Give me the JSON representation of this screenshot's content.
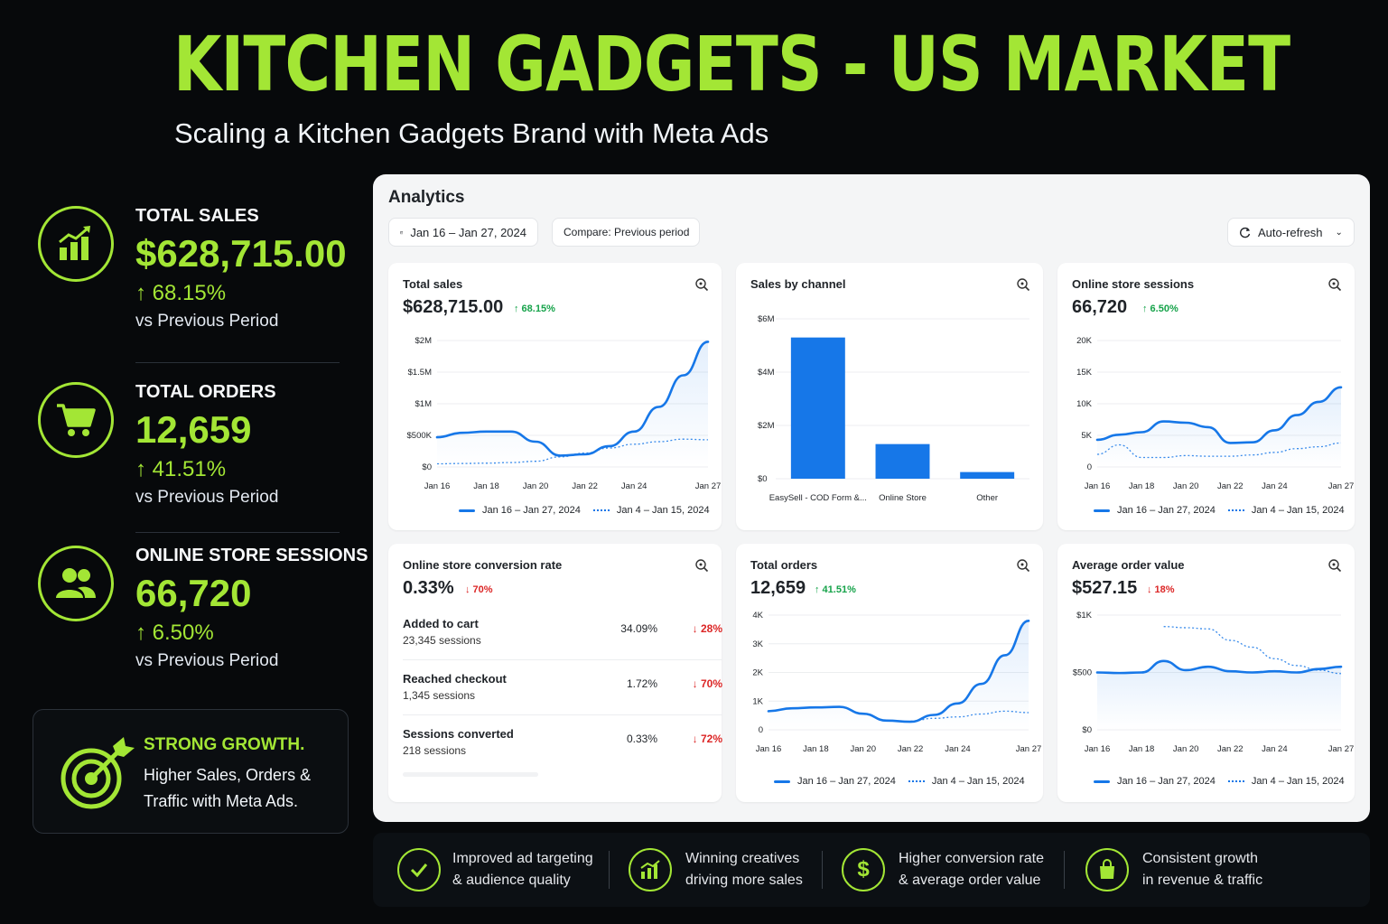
{
  "hero": {
    "title": "KITCHEN GADGETS - US MARKET",
    "subtitle": "Scaling a Kitchen Gadgets Brand with Meta Ads"
  },
  "colors": {
    "accent": "#a3e635",
    "chart_blue": "#1677e8",
    "up": "#16a34a",
    "down": "#dc2626"
  },
  "kpis": [
    {
      "label": "TOTAL SALES",
      "value": "$628,715.00",
      "change": "↑ 68.15%",
      "note": "vs Previous Period",
      "icon": "bar-chart-icon"
    },
    {
      "label": "TOTAL ORDERS",
      "value": "12,659",
      "change": "↑ 41.51%",
      "note": "vs Previous Period",
      "icon": "shopping-cart-icon"
    },
    {
      "label": "ONLINE STORE SESSIONS",
      "value": "66,720",
      "change": "↑ 6.50%",
      "note": "vs Previous Period",
      "icon": "users-icon"
    }
  ],
  "growth": {
    "title": "STRONG GROWTH.",
    "body": "Higher Sales, Orders & Traffic with Meta Ads.",
    "icon": "target-icon"
  },
  "analytics": {
    "title": "Analytics",
    "date_range": "Jan 16 – Jan 27, 2024",
    "compare": "Compare: Previous period",
    "auto_refresh": "Auto-refresh",
    "legend_current": "Jan 16 – Jan 27, 2024",
    "legend_previous": "Jan 4 – Jan 15, 2024",
    "cards": {
      "total_sales": {
        "title": "Total sales",
        "value": "$628,715.00",
        "change": "↑ 68.15%"
      },
      "sales_by_channel": {
        "title": "Sales by channel"
      },
      "sessions": {
        "title": "Online store sessions",
        "value": "66,720",
        "change": "↑ 6.50%"
      },
      "conversion": {
        "title": "Online store conversion rate",
        "value": "0.33%",
        "change": "↓ 70%",
        "rows": [
          {
            "label": "Added to cart",
            "sub": "23,345 sessions",
            "rate": "34.09%",
            "change": "↓ 28%"
          },
          {
            "label": "Reached checkout",
            "sub": "1,345 sessions",
            "rate": "1.72%",
            "change": "↓ 70%"
          },
          {
            "label": "Sessions converted",
            "sub": "218 sessions",
            "rate": "0.33%",
            "change": "↓ 72%"
          }
        ]
      },
      "total_orders": {
        "title": "Total orders",
        "value": "12,659",
        "change": "↑ 41.51%"
      },
      "aov": {
        "title": "Average order value",
        "value": "$527.15",
        "change": "↓ 18%"
      }
    }
  },
  "chart_data": [
    {
      "id": "total_sales",
      "type": "line",
      "x": [
        "Jan 16",
        "Jan 17",
        "Jan 18",
        "Jan 19",
        "Jan 20",
        "Jan 21",
        "Jan 22",
        "Jan 23",
        "Jan 24",
        "Jan 25",
        "Jan 26",
        "Jan 27"
      ],
      "xticks": [
        "Jan 16",
        "Jan 18",
        "Jan 20",
        "Jan 22",
        "Jan 24",
        "Jan 27"
      ],
      "yticks": [
        "$0",
        "$500K",
        "$1M",
        "$1.5M",
        "$2M"
      ],
      "ylim": [
        0,
        2000000
      ],
      "series": [
        {
          "name": "Jan 16 – Jan 27, 2024",
          "style": "solid",
          "values": [
            470000,
            540000,
            560000,
            560000,
            400000,
            180000,
            200000,
            330000,
            560000,
            950000,
            1450000,
            1980000
          ]
        },
        {
          "name": "Jan 4 – Jan 15, 2024",
          "style": "dotted",
          "values": [
            50000,
            55000,
            60000,
            70000,
            90000,
            160000,
            220000,
            300000,
            360000,
            400000,
            440000,
            430000
          ]
        }
      ]
    },
    {
      "id": "sales_by_channel",
      "type": "bar",
      "categories": [
        "EasySell - COD Form &...",
        "Online Store",
        "Other"
      ],
      "values": [
        5300000,
        1300000,
        250000
      ],
      "yticks": [
        "$0",
        "$2M",
        "$4M",
        "$6M"
      ],
      "ylim": [
        0,
        6000000
      ]
    },
    {
      "id": "sessions",
      "type": "line",
      "x": [
        "Jan 16",
        "Jan 17",
        "Jan 18",
        "Jan 19",
        "Jan 20",
        "Jan 21",
        "Jan 22",
        "Jan 23",
        "Jan 24",
        "Jan 25",
        "Jan 26",
        "Jan 27"
      ],
      "xticks": [
        "Jan 16",
        "Jan 18",
        "Jan 20",
        "Jan 22",
        "Jan 24",
        "Jan 27"
      ],
      "yticks": [
        "0",
        "5K",
        "10K",
        "15K",
        "20K"
      ],
      "ylim": [
        0,
        20000
      ],
      "series": [
        {
          "name": "Jan 16 – Jan 27, 2024",
          "style": "solid",
          "values": [
            4300,
            5100,
            5500,
            7200,
            7000,
            6300,
            3800,
            3900,
            5800,
            8200,
            10300,
            12600
          ]
        },
        {
          "name": "Jan 4 – Jan 15, 2024",
          "style": "dotted",
          "values": [
            2000,
            3500,
            1500,
            1500,
            1800,
            1700,
            1700,
            1900,
            2300,
            2900,
            3200,
            3800
          ]
        }
      ]
    },
    {
      "id": "total_orders",
      "type": "line",
      "x": [
        "Jan 16",
        "Jan 17",
        "Jan 18",
        "Jan 19",
        "Jan 20",
        "Jan 21",
        "Jan 22",
        "Jan 23",
        "Jan 24",
        "Jan 25",
        "Jan 26",
        "Jan 27"
      ],
      "xticks": [
        "Jan 16",
        "Jan 18",
        "Jan 20",
        "Jan 22",
        "Jan 24",
        "Jan 27"
      ],
      "yticks": [
        "0",
        "1K",
        "2K",
        "3K",
        "4K"
      ],
      "ylim": [
        0,
        4000
      ],
      "series": [
        {
          "name": "Jan 16 – Jan 27, 2024",
          "style": "solid",
          "values": [
            650,
            750,
            780,
            800,
            560,
            320,
            280,
            520,
            920,
            1600,
            2600,
            3800
          ]
        },
        {
          "name": "Jan 4 – Jan 15, 2024",
          "style": "dotted",
          "values": [
            null,
            null,
            null,
            null,
            null,
            null,
            300,
            400,
            450,
            550,
            650,
            600
          ]
        }
      ]
    },
    {
      "id": "aov",
      "type": "line",
      "x": [
        "Jan 16",
        "Jan 17",
        "Jan 18",
        "Jan 19",
        "Jan 20",
        "Jan 21",
        "Jan 22",
        "Jan 23",
        "Jan 24",
        "Jan 25",
        "Jan 26",
        "Jan 27"
      ],
      "xticks": [
        "Jan 16",
        "Jan 18",
        "Jan 20",
        "Jan 22",
        "Jan 24",
        "Jan 27"
      ],
      "yticks": [
        "$0",
        "$500",
        "$1K"
      ],
      "ylim": [
        0,
        1000
      ],
      "series": [
        {
          "name": "Jan 16 – Jan 27, 2024",
          "style": "solid",
          "values": [
            500,
            495,
            500,
            600,
            520,
            550,
            510,
            500,
            510,
            500,
            530,
            550
          ]
        },
        {
          "name": "Jan 4 – Jan 15, 2024",
          "style": "dotted",
          "values": [
            null,
            null,
            null,
            900,
            890,
            880,
            780,
            720,
            620,
            560,
            520,
            490
          ]
        }
      ]
    }
  ],
  "benefits": [
    {
      "line1": "Improved ad targeting",
      "line2": "& audience quality",
      "icon": "check-icon"
    },
    {
      "line1": "Winning creatives",
      "line2": "driving more sales",
      "icon": "growth-chart-icon"
    },
    {
      "line1": "Higher conversion rate",
      "line2": "& average order value",
      "icon": "dollar-icon"
    },
    {
      "line1": "Consistent growth",
      "line2": "in revenue & traffic",
      "icon": "shopping-bag-icon"
    }
  ]
}
